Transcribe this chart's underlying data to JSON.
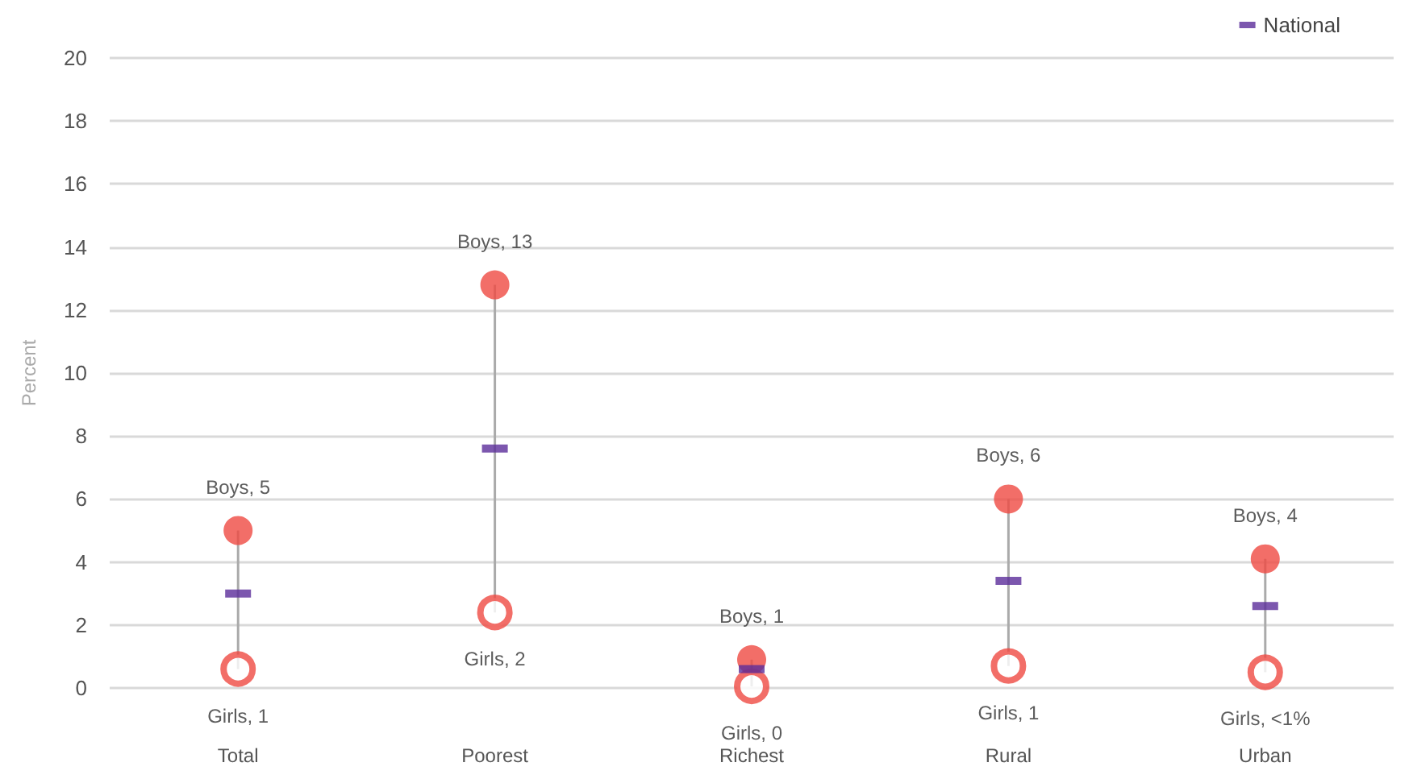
{
  "chart_data": {
    "type": "scatter",
    "ylabel": "Percent",
    "categories": [
      "Total",
      "Poorest",
      "Richest",
      "Rural",
      "Urban"
    ],
    "ylim": [
      0,
      20
    ],
    "yticks": [
      0,
      2,
      4,
      6,
      8,
      10,
      12,
      14,
      16,
      18,
      20
    ],
    "grid": "y",
    "legend": "top right",
    "marker": "circle",
    "series": [
      {
        "color": "#ef4a42",
        "values": [
          5,
          12.8,
          0.9,
          6,
          4.1
        ],
        "value_labels": [
          "Boys, 5",
          "Boys, 13",
          "Boys, 1",
          "Boys, 6",
          "Boys, 4"
        ]
      },
      {
        "color": "#ef4a42",
        "values": [
          0.6,
          2.4,
          0.05,
          0.7,
          0.5
        ],
        "value_labels": [
          "Girls, 1",
          "Girls, 2",
          "Girls, 0",
          "Girls, 1",
          "Girls, <1%"
        ]
      },
      {
        "name": "National",
        "color": "#5b2d9a",
        "marker": "square",
        "values": [
          3,
          7.6,
          0.6,
          3.4,
          2.6
        ]
      }
    ]
  }
}
